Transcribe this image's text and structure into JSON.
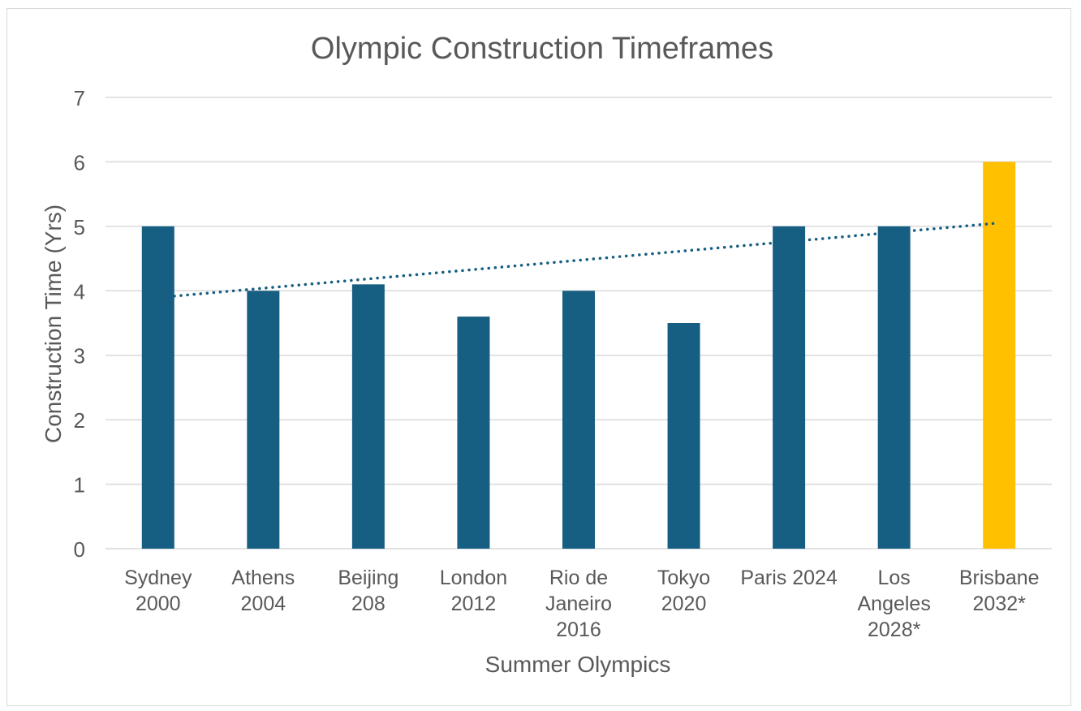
{
  "chart_data": {
    "type": "bar",
    "title": "Olympic Construction Timeframes",
    "xlabel": "Summer Olympics",
    "ylabel": "Construction Time (Yrs)",
    "ylim": [
      0,
      7
    ],
    "yticks": [
      "0",
      "1",
      "2",
      "3",
      "4",
      "5",
      "6",
      "7"
    ],
    "grid": true,
    "categories": [
      [
        "Sydney",
        "2000"
      ],
      [
        "Athens",
        "2004"
      ],
      [
        "Beijing",
        "208"
      ],
      [
        "London",
        "2012"
      ],
      [
        "Rio de",
        "Janeiro",
        "2016"
      ],
      [
        "Tokyo",
        "2020"
      ],
      [
        "Paris 2024"
      ],
      [
        "Los",
        "Angeles",
        "2028*"
      ],
      [
        "Brisbane",
        "2032*"
      ]
    ],
    "values": [
      5,
      4,
      4.1,
      3.6,
      4,
      3.5,
      5,
      5,
      6
    ],
    "bar_colors": [
      "#165e82",
      "#165e82",
      "#165e82",
      "#165e82",
      "#165e82",
      "#165e82",
      "#165e82",
      "#165e82",
      "#ffc000"
    ],
    "trendline": {
      "type": "linear",
      "style": "dotted",
      "color": "#165e82",
      "start_value": 3.9,
      "end_value": 5.05
    },
    "colors": {
      "gridline": "#d9d9d9",
      "text": "#595959"
    }
  }
}
